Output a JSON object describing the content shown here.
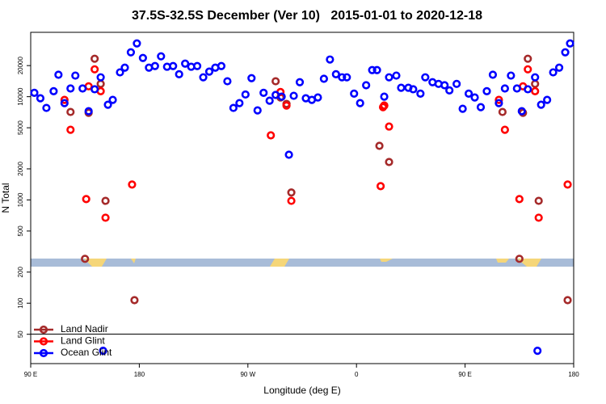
{
  "chart_data": {
    "type": "scatter",
    "title": "37.5S-32.5S December (Ver 10)   2015-01-01 to 2020-12-18",
    "x_label": "Longitude (deg E)",
    "y_label": "N Total",
    "xlim": [
      90,
      540
    ],
    "xticks": [
      {
        "value": 90,
        "label": "90 E"
      },
      180,
      {
        "value": 270,
        "label": "90 W"
      },
      {
        "value": 360,
        "label": "0"
      },
      {
        "value": 450,
        "label": "90 E"
      },
      {
        "value": 540,
        "label": "180"
      }
    ],
    "ylim": [
      26,
      42000
    ],
    "log_y": true,
    "yticks": [
      50,
      100,
      200,
      500,
      1000,
      2000,
      5000,
      10000,
      20000
    ],
    "legend": "bottom-left",
    "series": [
      {
        "name": "Land Nadir",
        "color": "#a52a2a",
        "x": [
          123,
          135,
          138,
          143,
          148,
          152,
          176,
          293,
          297,
          302,
          306,
          379,
          383,
          387,
          481,
          495,
          498,
          502,
          508,
          511,
          535
        ],
        "values": [
          7110,
          269,
          6980,
          23300,
          13300,
          980,
          107,
          14100,
          9820,
          8510,
          1180,
          3340,
          8200,
          2330,
          7110,
          269,
          6980,
          23300,
          13300,
          980,
          107
        ]
      },
      {
        "name": "Land Glint",
        "color": "#ff0000",
        "x": [
          118,
          123,
          136,
          138,
          143,
          148,
          152,
          174,
          289,
          297,
          302,
          306,
          380,
          382,
          383,
          387,
          478,
          483,
          495,
          498,
          502,
          508,
          511,
          535
        ],
        "values": [
          9310,
          4780,
          1020,
          12600,
          18400,
          11300,
          673,
          1410,
          4220,
          11100,
          8200,
          980,
          1360,
          7910,
          8200,
          5140,
          9310,
          4780,
          1020,
          12600,
          18400,
          11300,
          673,
          1410
        ]
      },
      {
        "name": "Ocean Glint",
        "color": "#0000ff",
        "x": [
          93,
          98,
          103,
          109,
          113,
          118,
          123,
          127,
          133,
          138,
          143,
          148,
          154,
          158,
          164,
          168,
          173,
          178,
          183,
          188,
          193,
          198,
          203,
          208,
          213,
          218,
          223,
          228,
          233,
          238,
          243,
          248,
          253,
          258,
          263,
          268,
          273,
          278,
          283,
          288,
          293,
          298,
          304,
          308,
          313,
          318,
          323,
          328,
          333,
          338,
          343,
          348,
          352,
          358,
          363,
          368,
          373,
          377,
          383,
          387,
          393,
          397,
          403,
          407,
          413,
          417,
          423,
          428,
          433,
          437,
          443,
          448,
          453,
          458,
          463,
          468,
          473,
          478,
          483,
          488,
          493,
          497,
          502,
          508,
          513,
          518,
          523,
          528,
          533,
          537,
          150,
          510
        ],
        "values": [
          10900,
          9650,
          7780,
          11300,
          16300,
          8660,
          12000,
          16000,
          12000,
          7230,
          11800,
          15400,
          8360,
          9310,
          17200,
          19100,
          26900,
          32800,
          23700,
          19100,
          19800,
          24600,
          19500,
          19800,
          16500,
          20900,
          19500,
          19800,
          15400,
          17500,
          19100,
          19800,
          14100,
          7780,
          8660,
          10500,
          15100,
          7360,
          10900,
          9140,
          10400,
          10000,
          2740,
          10200,
          13800,
          9650,
          9310,
          9820,
          14900,
          22900,
          16500,
          15400,
          15400,
          10700,
          8660,
          12900,
          18100,
          18100,
          10000,
          15400,
          16000,
          12200,
          12200,
          11800,
          10700,
          15400,
          13800,
          13300,
          12900,
          11500,
          13300,
          7640,
          10700,
          9820,
          7910,
          11300,
          16300,
          8660,
          12000,
          16000,
          12000,
          7230,
          11800,
          15400,
          8360,
          9310,
          17200,
          19100,
          26900,
          32800,
          34.6,
          34.6
        ]
      }
    ]
  }
}
